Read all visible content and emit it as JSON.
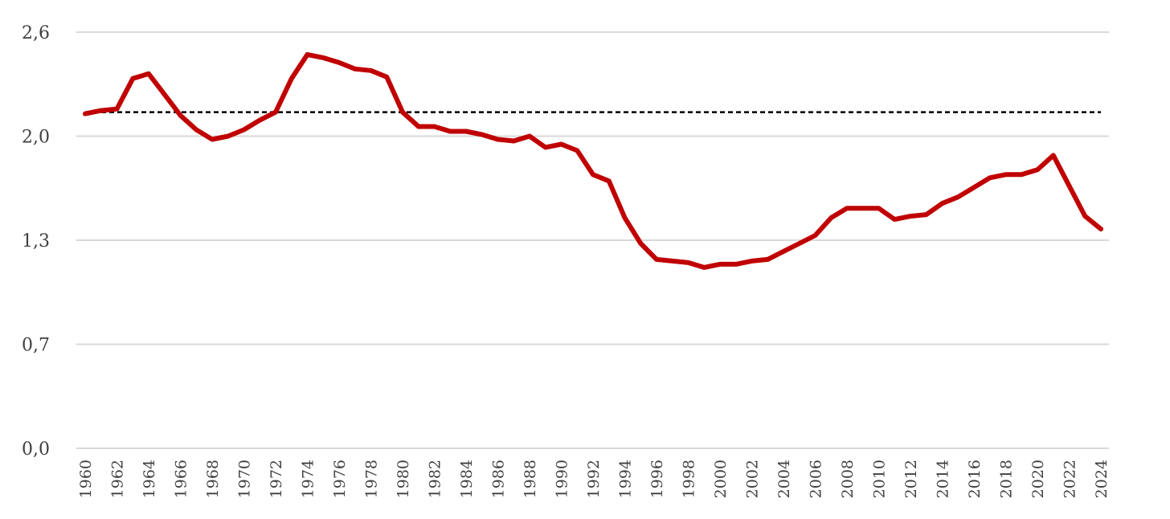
{
  "chart_data": {
    "type": "line",
    "title": "",
    "xlabel": "",
    "ylabel": "",
    "ylim": [
      0,
      2.6
    ],
    "yticks": [
      0.0,
      0.65,
      1.3,
      1.95,
      2.6
    ],
    "ytick_labels": [
      "0,0",
      "0,7",
      "1,3",
      "2,0",
      "2,6"
    ],
    "grid": true,
    "x": [
      1960,
      1961,
      1962,
      1963,
      1964,
      1965,
      1966,
      1967,
      1968,
      1969,
      1970,
      1971,
      1972,
      1973,
      1974,
      1975,
      1976,
      1977,
      1978,
      1979,
      1980,
      1981,
      1982,
      1983,
      1984,
      1985,
      1986,
      1987,
      1988,
      1989,
      1990,
      1991,
      1992,
      1993,
      1994,
      1995,
      1996,
      1997,
      1998,
      1999,
      2000,
      2001,
      2002,
      2003,
      2004,
      2005,
      2006,
      2007,
      2008,
      2009,
      2010,
      2011,
      2012,
      2013,
      2014,
      2015,
      2016,
      2017,
      2018,
      2019,
      2020,
      2021,
      2022,
      2023,
      2024
    ],
    "xtick_labels": [
      "1960",
      "1962",
      "1964",
      "1966",
      "1968",
      "1970",
      "1972",
      "1974",
      "1976",
      "1978",
      "1980",
      "1982",
      "1984",
      "1986",
      "1988",
      "1990",
      "1992",
      "1994",
      "1996",
      "1998",
      "2000",
      "2002",
      "2004",
      "2006",
      "2008",
      "2010",
      "2012",
      "2014",
      "2016",
      "2018",
      "2020",
      "2022",
      "2024"
    ],
    "series": [
      {
        "color": "#c00000",
        "values": [
          2.09,
          2.11,
          2.12,
          2.31,
          2.34,
          2.21,
          2.08,
          1.99,
          1.93,
          1.95,
          1.99,
          2.05,
          2.1,
          2.31,
          2.46,
          2.44,
          2.41,
          2.37,
          2.36,
          2.32,
          2.1,
          2.01,
          2.01,
          1.98,
          1.98,
          1.96,
          1.93,
          1.92,
          1.95,
          1.88,
          1.9,
          1.86,
          1.71,
          1.67,
          1.44,
          1.28,
          1.18,
          1.17,
          1.16,
          1.13,
          1.15,
          1.15,
          1.17,
          1.18,
          1.23,
          1.28,
          1.33,
          1.44,
          1.5,
          1.5,
          1.5,
          1.43,
          1.45,
          1.46,
          1.53,
          1.57,
          1.63,
          1.69,
          1.71,
          1.71,
          1.74,
          1.83,
          1.64,
          1.45,
          1.37
        ]
      }
    ],
    "reference_line": {
      "value": 2.1,
      "style": "dashed",
      "color": "#000000"
    }
  }
}
